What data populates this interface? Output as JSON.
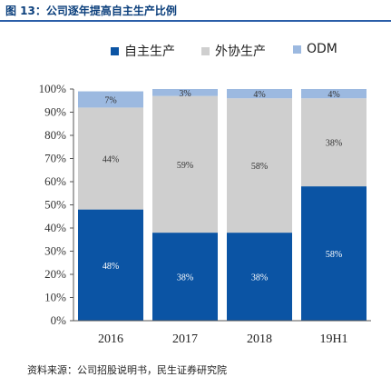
{
  "figure": {
    "title": "图 13：公司逐年提高自主生产比例",
    "source": "资料来源：公司招股说明书，民生证券研究院"
  },
  "chart_data": {
    "type": "bar",
    "stacked": true,
    "categories": [
      "2016",
      "2017",
      "2018",
      "19H1"
    ],
    "series": [
      {
        "name": "自主生产",
        "color": "#0b54a4",
        "label_color": "#ffffff",
        "values": [
          48,
          38,
          38,
          58
        ],
        "labels": [
          "48%",
          "38%",
          "38%",
          "58%"
        ]
      },
      {
        "name": "外协生产",
        "color": "#cfcfcf",
        "label_color": "#333333",
        "values": [
          44,
          59,
          58,
          38
        ],
        "labels": [
          "44%",
          "59%",
          "58%",
          "38%"
        ]
      },
      {
        "name": "ODM",
        "color": "#9cb9e0",
        "label_color": "#333333",
        "values": [
          7,
          3,
          4,
          4
        ],
        "labels": [
          "7%",
          "3%",
          "4%",
          "4%"
        ]
      }
    ],
    "yticks": [
      "0%",
      "10%",
      "20%",
      "30%",
      "40%",
      "50%",
      "60%",
      "70%",
      "80%",
      "90%",
      "100%"
    ],
    "ylim": [
      0,
      100
    ],
    "grid": false,
    "legend": "top"
  }
}
